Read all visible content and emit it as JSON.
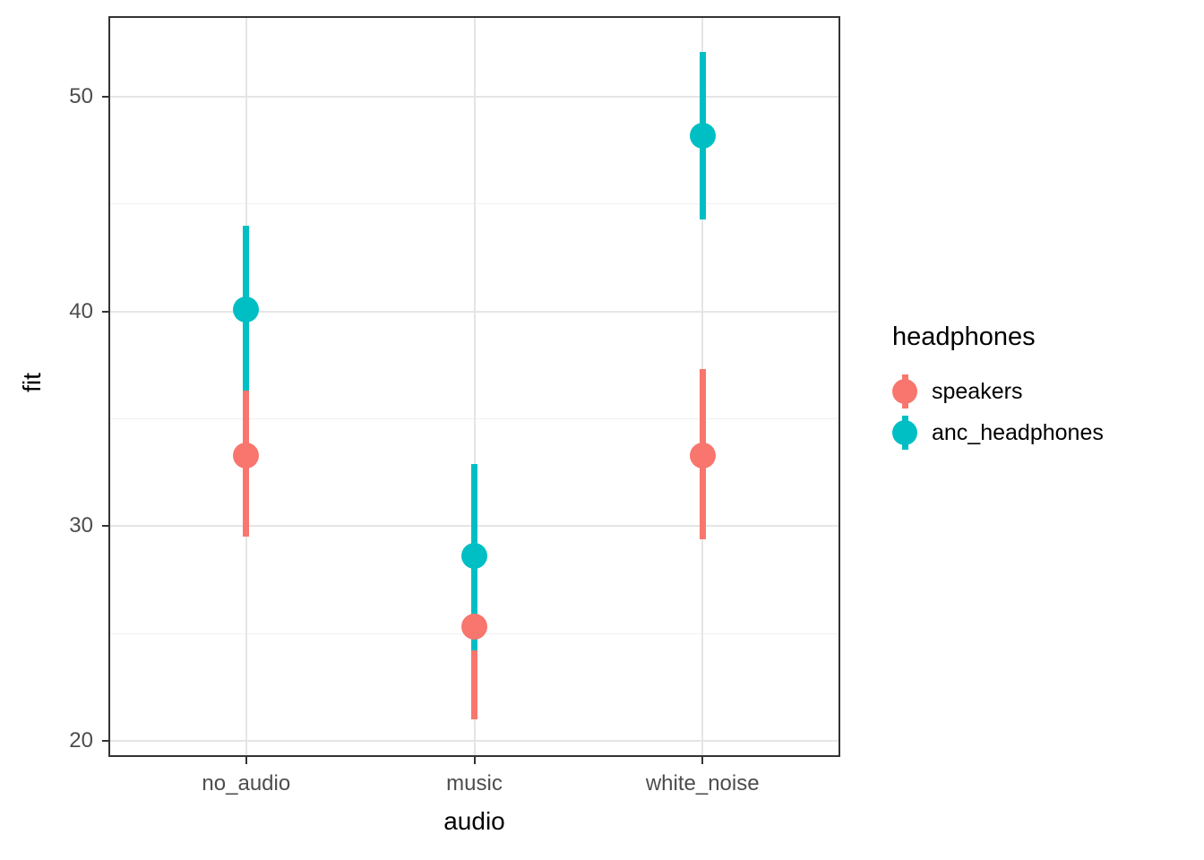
{
  "chart_data": {
    "type": "pointrange",
    "title": "",
    "xlabel": "audio",
    "ylabel": "fit",
    "categories": [
      "no_audio",
      "music",
      "white_noise"
    ],
    "y_major_ticks": [
      20,
      30,
      40,
      50
    ],
    "y_minor_gridlines": [
      25,
      35,
      45
    ],
    "ylim": [
      19.3,
      53.7
    ],
    "grid": "horizontal major+minor, vertical major at categories",
    "legend": {
      "title": "headphones",
      "position": "right"
    },
    "series": [
      {
        "name": "speakers",
        "color": "#F8766D",
        "points": [
          {
            "category": "no_audio",
            "fit": 33.3,
            "lower": 29.5,
            "upper": 37.1
          },
          {
            "category": "music",
            "fit": 25.3,
            "lower": 21.0,
            "upper": 29.6
          },
          {
            "category": "white_noise",
            "fit": 33.3,
            "lower": 29.4,
            "upper": 37.3
          }
        ]
      },
      {
        "name": "anc_headphones",
        "color": "#00BFC4",
        "points": [
          {
            "category": "no_audio",
            "fit": 40.1,
            "lower": 36.3,
            "upper": 44.0
          },
          {
            "category": "music",
            "fit": 28.6,
            "lower": 24.2,
            "upper": 32.9
          },
          {
            "category": "white_noise",
            "fit": 48.2,
            "lower": 44.3,
            "upper": 52.1
          }
        ]
      }
    ],
    "colors": {
      "panel_border": "#333333",
      "grid_major": "#E5E5E5",
      "grid_minor": "#F0F0F0",
      "tick_mark": "#333333",
      "tick_label": "#4D4D4D",
      "axis_title": "#000000"
    }
  }
}
